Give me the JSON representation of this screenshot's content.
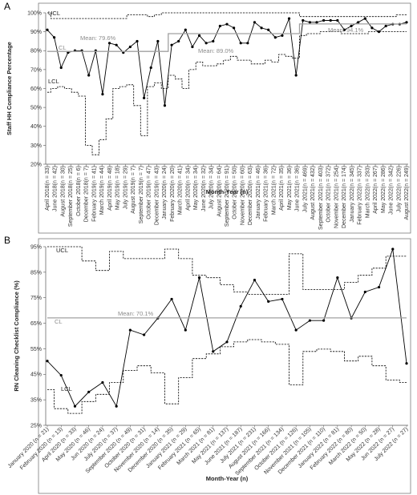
{
  "chart_data": [
    {
      "panel": "A",
      "type": "line",
      "xlabel": "Month-Year (n)",
      "ylabel": "Staff HH Compliance Percentage",
      "ylim": [
        20,
        100
      ],
      "yticks": [
        "20%",
        "30%",
        "40%",
        "50%",
        "60%",
        "70%",
        "80%",
        "90%",
        "100%"
      ],
      "categories": [
        "April 2018(n = 33)",
        "May 2018(n = 13)",
        "June 2018(n = 42)",
        "July 2018(n = 41)",
        "August 2018(n = 30)",
        "September 2018(n = 25)",
        "October 2018(n = 6)",
        "November 2018(n = 5)",
        "December 2018(n = 7)",
        "January 2019(n = 12)",
        "February 2019(n = 41)",
        "March 2019(n = 44)",
        "April 2019(n = 48)",
        "May 2019(n = 18)",
        "June 2019(n = 38)",
        "July 2019(n = 29)",
        "August 2019(n = 7)",
        "September 2019(n = 7)",
        "October 2019(n = 47)",
        "November 2019(n = 47)",
        "December 2019(n = 43)",
        "January 2020(n = 24)",
        "February 2020(n = 20)",
        "March 2020(n = 41)",
        "April 2020(n = 34)",
        "May 2020(n = 34)",
        "June 2020(n = 32)",
        "July 2020(n = 34)",
        "August 2020(n = 64)",
        "September 2020(n = 91)",
        "October 2020(n = 50)",
        "November 2020(n = 60)",
        "December 2020(n = 63)",
        "January 2021(n = 46)",
        "February 2021(n = 36)",
        "March 2021(n = 72)",
        "April 2021(n = 35)",
        "May 2021(n = 36)",
        "June 2021(n = 36)",
        "July 2021(n = 469)",
        "August 2021(n = 432)",
        "September 2021(n = 403)",
        "October 2021(n = 372)",
        "November 2021(n = 254)",
        "December 2021(n = 174)",
        "January 2022(n = 345)",
        "February 2022(n = 337)",
        "March 2022(n = 293)",
        "April 2022(n = 267)",
        "May 2022(n = 286)",
        "June 2022(n = 342)",
        "July 2022(n = 226)",
        "August 2022(n = 249)"
      ],
      "display_ticks": [
        "April 2018(n = 33)",
        "June 2018(n = 42)",
        "August 2018(n = 30)",
        "September 2018(n = 25)",
        "October 2018(n = 6)",
        "December 2018(n = 7)",
        "February 2019(n = 41)",
        "March 2019(n = 44)",
        "April 2019(n = 48)",
        "May 2019(n = 18)",
        "July 2019(n = 29)",
        "August 2019(n = 7)",
        "September 2019(n = 7)",
        "October 2019(n = 47)",
        "December 2019(n = 43)",
        "January 2020(n = 24)",
        "February 2020(n = 20)",
        "March 2020(n = 41)",
        "April 2020(n = 34)",
        "May 2020(n = 34)",
        "June 2020(n = 32)",
        "July 2020(n = 34)",
        "August 2020(n = 64)",
        "September 2020(n = 91)",
        "October 2020(n = 50)",
        "November 2020(n = 60)",
        "December 2020(n = 63)",
        "January 2021(n = 46)",
        "February 2021(n = 36)",
        "March 2021(n = 72)",
        "April 2021(n = 35)",
        "May 2021(n = 36)",
        "June 2021(n = 36)",
        "July 2021(n = 469)",
        "August 2021(n = 432)",
        "September 2021(n = 403)",
        "October 2021(n = 372)",
        "November 2021(n = 254)",
        "December 2021(n = 174)",
        "January 2022(n = 345)",
        "February 2022(n = 337)",
        "March 2022(n = 293)",
        "April 2022(n = 267)",
        "May 2022(n = 286)",
        "June 2022(n = 342)",
        "July 2022(n = 226)",
        "August 2022(n = 249)"
      ],
      "series": [
        {
          "role": "data",
          "values": [
            91,
            87,
            71,
            79,
            80,
            80,
            67,
            80,
            57,
            84,
            83,
            79,
            82,
            85,
            55,
            71,
            85,
            51,
            83,
            85,
            91,
            82,
            88,
            84,
            85,
            93,
            94,
            92,
            84,
            84,
            95,
            92,
            91,
            87,
            88,
            97,
            67,
            96,
            95,
            95,
            96,
            96,
            96,
            91,
            93,
            95,
            97,
            92,
            90,
            93,
            94,
            94,
            95
          ]
        },
        {
          "role": "UCL",
          "label": "UCL",
          "values": [
            100,
            97,
            97,
            97,
            97,
            97,
            97,
            97,
            97,
            97,
            97,
            97,
            99,
            99,
            99,
            98,
            99,
            100,
            100,
            100,
            100,
            100,
            100,
            100,
            100,
            100,
            100,
            100,
            100,
            100,
            100,
            100,
            100,
            100,
            100,
            100,
            100,
            98,
            98,
            98,
            98,
            98,
            98,
            98,
            98,
            98,
            98,
            98,
            98,
            98,
            98,
            99,
            99
          ]
        },
        {
          "role": "CL",
          "label": "CL",
          "values": [
            79.6,
            79.6,
            79.6,
            79.6,
            79.6,
            79.6,
            79.6,
            79.6,
            79.6,
            79.6,
            79.6,
            79.6,
            79.6,
            79.6,
            79.6,
            79.6,
            79.6,
            79.6,
            89.0,
            89.0,
            89.0,
            89.0,
            89.0,
            89.0,
            89.0,
            89.0,
            89.0,
            89.0,
            89.0,
            89.0,
            89.0,
            89.0,
            89.0,
            89.0,
            89.0,
            89.0,
            89.0,
            94.1,
            94.1,
            94.1,
            94.1,
            94.1,
            94.1,
            94.1,
            94.1,
            94.1,
            94.1,
            94.1,
            94.1,
            94.1,
            94.1,
            94.1,
            94.1
          ]
        },
        {
          "role": "LCL",
          "label": "LCL",
          "values": [
            58,
            60,
            61,
            60,
            58,
            56,
            30,
            25,
            33,
            44,
            60,
            61,
            62,
            51,
            35,
            61,
            63,
            60,
            67,
            65,
            60,
            70,
            74,
            72,
            72,
            73,
            75,
            77,
            75,
            75,
            73,
            73,
            75,
            74,
            78,
            77,
            76,
            88,
            89,
            89,
            90,
            90,
            90,
            89,
            89,
            89,
            89,
            90,
            90,
            90,
            90,
            90,
            90
          ]
        }
      ],
      "annotations": {
        "ucl": "UCL",
        "cl": "CL",
        "lcl": "LCL",
        "means": [
          "Mean: 79.6%",
          "Mean: 89.0%",
          "Mean: 94.1%"
        ]
      },
      "colors": {
        "data": "#000000",
        "limits": "#000000",
        "center": "#a0a0a0",
        "mean_text": "#8c8c8c"
      }
    },
    {
      "panel": "B",
      "type": "line",
      "xlabel": "Month-Year (n)",
      "ylabel": "RN Cleaning Checklist Compliance (%)",
      "ylim": [
        25,
        100
      ],
      "yticks": [
        "25%",
        "35%",
        "45%",
        "55%",
        "65%",
        "75%",
        "85%",
        "95%"
      ],
      "categories": [
        "January 2020 (n = 21)",
        "February 2020 (n = 13)",
        "March 2020 (n = 12)",
        "April 2020 (n = 33)",
        "May 2020 (n = 46)",
        "June 2020 (n = 24)",
        "July 2020 (n = 37)",
        "August 2020 (n = 49)",
        "September 2020 (n = 31)",
        "October 2020 (n = 14)",
        "November 2020 (n = 35)",
        "December 2020 (n = 29)",
        "January 2021 (n = 65)",
        "February 2021 (n = 81)",
        "March 2021 (n = 137)",
        "April 2021 (n = 187)",
        "May 2021 (n = 231)",
        "June 2021 (n = 166)",
        "July 2021 (n = 134)",
        "August 2021 (n = 126)",
        "September 2021 (n = 105)",
        "October 2021 (n = 110)",
        "November 2021 (n = 81)",
        "December 2021 (n = 80)",
        "January 2022 (n = 50)",
        "February 2022 (n = 28)",
        "March 2022 (n = 27)"
      ],
      "display_ticks": [
        "January 2020 (n = 21)",
        "February 2020 (n = 13)",
        "April 2020 (n = 33)",
        "May 2020 (n = 46)",
        "Jun 2020 (n = 24)",
        "July 2020 (n = 37)",
        "September 2020 (n = 49)",
        "October 2020 (n = 31)",
        "November 2020 (n = 14)",
        "December 2020 (n = 35)",
        "January 2021 (n = 29)",
        "February 2021 (n = 65)",
        "March 2021 (n = 81)",
        "May 2021 (n = 137)",
        "June 2021 (n = 187)",
        "July 2021 (n = 231)",
        "August 2021 (n = 166)",
        "September 2021 (n = 134)",
        "October 2021 (n = 126)",
        "November 2021 (n = 105)",
        "December 2021 (n = 110)",
        "January 2022 (n = 81)",
        "February 2022 (n = 80)",
        "March 2022 (n = 50)",
        "May 2022 (n = 28)",
        "Jun 2022 (n = 27)",
        "July 2022 (n = 27)"
      ],
      "series": [
        {
          "role": "data",
          "values": [
            52,
            46,
            33,
            39,
            43,
            33,
            65,
            63,
            70,
            78,
            65,
            87,
            56,
            60,
            75,
            86,
            77,
            78,
            65,
            69,
            69,
            87,
            70,
            81,
            83,
            99,
            51
          ]
        },
        {
          "role": "UCL",
          "label": "UCL",
          "values": [
            100,
            100,
            100,
            94,
            90,
            98,
            95,
            95,
            95,
            99,
            95,
            88,
            87,
            84,
            81,
            80,
            80,
            80,
            97,
            82,
            82,
            82,
            85,
            88,
            91,
            96,
            96
          ]
        },
        {
          "role": "CL",
          "label": "CL",
          "values": [
            70.1,
            70.1,
            70.1,
            70.1,
            70.1,
            70.1,
            70.1,
            70.1,
            70.1,
            70.1,
            70.1,
            70.1,
            70.1,
            70.1,
            70.1,
            70.1,
            70.1,
            70.1,
            70.1,
            70.1,
            70.1,
            70.1,
            70.1,
            70.1,
            70.1,
            70.1,
            70.1
          ]
        },
        {
          "role": "LCL",
          "label": "LCL",
          "values": [
            40,
            32,
            30,
            35,
            38,
            43,
            48,
            50,
            47,
            34,
            45,
            53,
            55,
            58,
            60,
            61,
            60,
            59,
            42,
            56,
            57,
            56,
            52,
            54,
            50,
            44,
            43
          ]
        }
      ],
      "annotations": {
        "ucl": "UCL",
        "cl": "CL",
        "lcl": "LCL",
        "means": [
          "Mean: 70.1%"
        ]
      },
      "colors": {
        "data": "#000000",
        "limits": "#000000",
        "center": "#a0a0a0",
        "mean_text": "#8c8c8c"
      }
    }
  ]
}
